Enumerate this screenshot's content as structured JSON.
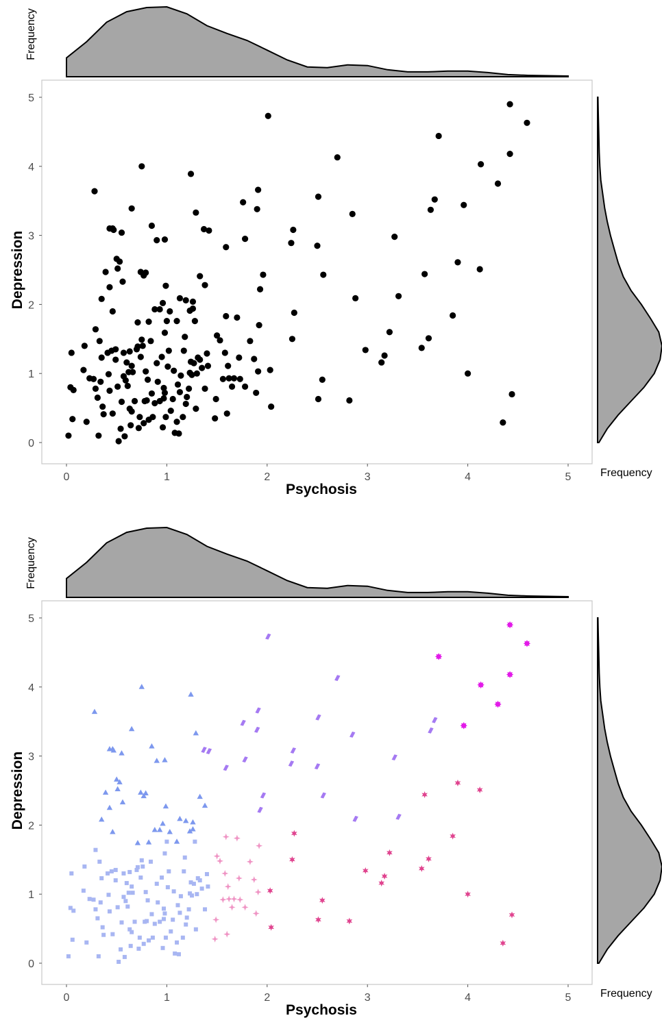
{
  "chart_data": [
    {
      "type": "scatter",
      "variant": "plain",
      "xlabel": "Psychosis",
      "ylabel": "Depression",
      "xlim": [
        0,
        5
      ],
      "ylim": [
        0,
        5
      ],
      "xticks": [
        "0",
        "1",
        "2",
        "3",
        "4",
        "5"
      ],
      "yticks": [
        "0",
        "1",
        "2",
        "3",
        "4",
        "5"
      ],
      "marginal_x_label": "Frequency",
      "marginal_y_label": "Frequency",
      "marker_color": "#000000",
      "density_fill": "#a6a6a6",
      "grid": false
    },
    {
      "type": "scatter",
      "variant": "clustered",
      "xlabel": "Psychosis",
      "ylabel": "Depression",
      "xlim": [
        0,
        5
      ],
      "ylim": [
        0,
        5
      ],
      "xticks": [
        "0",
        "1",
        "2",
        "3",
        "4",
        "5"
      ],
      "yticks": [
        "0",
        "1",
        "2",
        "3",
        "4",
        "5"
      ],
      "marginal_x_label": "Frequency",
      "marginal_y_label": "Frequency",
      "density_fill": "#a6a6a6",
      "grid": false,
      "groups": [
        {
          "marker": "square",
          "color": "#a8b6f2"
        },
        {
          "marker": "triangle",
          "color": "#7d98ee"
        },
        {
          "marker": "plus",
          "color": "#ef94c4"
        },
        {
          "marker": "diamond",
          "color": "#a57af2"
        },
        {
          "marker": "star",
          "color": "#e0448f"
        },
        {
          "marker": "burst",
          "color": "#e21ae8"
        }
      ]
    }
  ],
  "points": [
    [
      0.02,
      0.1,
      0
    ],
    [
      0.04,
      0.8,
      0
    ],
    [
      0.05,
      1.3,
      0
    ],
    [
      0.06,
      0.34,
      0
    ],
    [
      0.07,
      0.76,
      0
    ],
    [
      0.17,
      1.05,
      0
    ],
    [
      0.18,
      1.4,
      0
    ],
    [
      0.2,
      0.3,
      0
    ],
    [
      0.23,
      0.93,
      0
    ],
    [
      0.27,
      0.92,
      0
    ],
    [
      0.29,
      0.78,
      0
    ],
    [
      0.29,
      1.64,
      0
    ],
    [
      0.31,
      0.65,
      0
    ],
    [
      0.32,
      0.1,
      0
    ],
    [
      0.33,
      1.47,
      0
    ],
    [
      0.34,
      0.88,
      0
    ],
    [
      0.35,
      1.23,
      0
    ],
    [
      0.36,
      0.52,
      0
    ],
    [
      0.37,
      0.41,
      0
    ],
    [
      0.41,
      1.3,
      0
    ],
    [
      0.42,
      0.99,
      0
    ],
    [
      0.43,
      0.75,
      0
    ],
    [
      0.45,
      1.33,
      0
    ],
    [
      0.46,
      0.42,
      0
    ],
    [
      0.49,
      1.2,
      0
    ],
    [
      0.49,
      1.35,
      0
    ],
    [
      0.51,
      0.81,
      0
    ],
    [
      0.52,
      0.02,
      0
    ],
    [
      0.54,
      0.2,
      0
    ],
    [
      0.55,
      0.59,
      0
    ],
    [
      0.57,
      0.96,
      0
    ],
    [
      0.57,
      1.3,
      0
    ],
    [
      0.58,
      0.09,
      0
    ],
    [
      0.59,
      0.9,
      0
    ],
    [
      0.6,
      1.16,
      0
    ],
    [
      0.61,
      0.82,
      0
    ],
    [
      0.62,
      1.02,
      0
    ],
    [
      0.63,
      0.49,
      0
    ],
    [
      0.63,
      1.32,
      0
    ],
    [
      0.64,
      0.25,
      0
    ],
    [
      0.65,
      0.45,
      0
    ],
    [
      0.65,
      1.11,
      0
    ],
    [
      0.66,
      1.02,
      0
    ],
    [
      0.68,
      0.6,
      0
    ],
    [
      0.7,
      1.35,
      0
    ],
    [
      0.71,
      1.39,
      0
    ],
    [
      0.72,
      0.21,
      0
    ],
    [
      0.73,
      0.37,
      0
    ],
    [
      0.74,
      1.24,
      0
    ],
    [
      0.75,
      1.49,
      0
    ],
    [
      0.76,
      1.4,
      0
    ],
    [
      0.77,
      0.28,
      0
    ],
    [
      0.78,
      0.6,
      0
    ],
    [
      0.79,
      1.03,
      0
    ],
    [
      0.8,
      0.61,
      0
    ],
    [
      0.81,
      0.91,
      0
    ],
    [
      0.82,
      0.33,
      0
    ],
    [
      0.84,
      1.47,
      0
    ],
    [
      0.85,
      0.71,
      0
    ],
    [
      0.86,
      0.37,
      0
    ],
    [
      0.88,
      0.57,
      0
    ],
    [
      0.9,
      1.15,
      0
    ],
    [
      0.91,
      0.88,
      0
    ],
    [
      0.93,
      0.6,
      0
    ],
    [
      0.95,
      1.24,
      0
    ],
    [
      0.96,
      0.22,
      0
    ],
    [
      0.97,
      0.79,
      0
    ],
    [
      0.97,
      0.64,
      0
    ],
    [
      0.98,
      1.59,
      0
    ],
    [
      0.98,
      0.72,
      0
    ],
    [
      0.99,
      0.37,
      0
    ],
    [
      1.0,
      1.76,
      0
    ],
    [
      1.01,
      1.1,
      0
    ],
    [
      1.02,
      1.33,
      0
    ],
    [
      1.04,
      0.46,
      0
    ],
    [
      1.06,
      0.63,
      0
    ],
    [
      1.07,
      1.04,
      0
    ],
    [
      1.08,
      0.14,
      0
    ],
    [
      1.1,
      0.3,
      0
    ],
    [
      1.11,
      0.84,
      0
    ],
    [
      1.12,
      0.13,
      0
    ],
    [
      1.13,
      0.73,
      0
    ],
    [
      1.14,
      0.97,
      0
    ],
    [
      1.16,
      0.37,
      0
    ],
    [
      1.17,
      1.33,
      0
    ],
    [
      1.18,
      1.53,
      0
    ],
    [
      1.19,
      0.56,
      0
    ],
    [
      1.2,
      0.66,
      0
    ],
    [
      1.22,
      0.78,
      0
    ],
    [
      1.23,
      1.01,
      0
    ],
    [
      1.24,
      1.17,
      0
    ],
    [
      1.25,
      0.98,
      0
    ],
    [
      1.27,
      1.15,
      0
    ],
    [
      1.28,
      1.76,
      0
    ],
    [
      1.29,
      0.49,
      0
    ],
    [
      1.3,
      1.0,
      0
    ],
    [
      1.31,
      1.23,
      0
    ],
    [
      1.33,
      1.2,
      0
    ],
    [
      1.35,
      1.08,
      0
    ],
    [
      1.38,
      0.78,
      0
    ],
    [
      1.4,
      1.29,
      0
    ],
    [
      1.41,
      1.11,
      0
    ],
    [
      0.28,
      3.64,
      1
    ],
    [
      0.35,
      2.08,
      1
    ],
    [
      0.39,
      2.47,
      1
    ],
    [
      0.43,
      2.25,
      1
    ],
    [
      0.43,
      3.1,
      1
    ],
    [
      0.46,
      3.1,
      1
    ],
    [
      0.46,
      1.9,
      1
    ],
    [
      0.47,
      3.08,
      1
    ],
    [
      0.5,
      2.66,
      1
    ],
    [
      0.51,
      2.52,
      1
    ],
    [
      0.53,
      2.62,
      1
    ],
    [
      0.55,
      3.04,
      1
    ],
    [
      0.56,
      2.33,
      1
    ],
    [
      0.65,
      3.39,
      1
    ],
    [
      0.71,
      1.74,
      1
    ],
    [
      0.74,
      2.47,
      1
    ],
    [
      0.75,
      4.0,
      1
    ],
    [
      0.77,
      2.42,
      1
    ],
    [
      0.79,
      2.46,
      1
    ],
    [
      0.82,
      1.75,
      1
    ],
    [
      0.85,
      3.14,
      1
    ],
    [
      0.88,
      1.93,
      1
    ],
    [
      0.9,
      2.93,
      1
    ],
    [
      0.93,
      1.93,
      1
    ],
    [
      0.96,
      2.02,
      1
    ],
    [
      0.98,
      2.94,
      1
    ],
    [
      0.99,
      2.27,
      1
    ],
    [
      1.03,
      1.9,
      1
    ],
    [
      1.1,
      1.76,
      1
    ],
    [
      1.13,
      2.09,
      1
    ],
    [
      1.19,
      2.06,
      1
    ],
    [
      1.23,
      1.91,
      1
    ],
    [
      1.24,
      3.89,
      1
    ],
    [
      1.26,
      1.94,
      1
    ],
    [
      1.26,
      2.04,
      1
    ],
    [
      1.29,
      3.33,
      1
    ],
    [
      1.33,
      2.41,
      1
    ],
    [
      1.38,
      2.28,
      1
    ],
    [
      1.48,
      0.35,
      2
    ],
    [
      1.49,
      0.63,
      2
    ],
    [
      1.5,
      1.55,
      2
    ],
    [
      1.53,
      1.48,
      2
    ],
    [
      1.56,
      0.92,
      2
    ],
    [
      1.58,
      1.3,
      2
    ],
    [
      1.59,
      1.83,
      2
    ],
    [
      1.6,
      0.42,
      2
    ],
    [
      1.61,
      1.11,
      2
    ],
    [
      1.62,
      0.93,
      2
    ],
    [
      1.65,
      0.81,
      2
    ],
    [
      1.67,
      0.93,
      2
    ],
    [
      1.7,
      1.81,
      2
    ],
    [
      1.72,
      1.23,
      2
    ],
    [
      1.73,
      0.92,
      2
    ],
    [
      1.78,
      0.81,
      2
    ],
    [
      1.83,
      1.47,
      2
    ],
    [
      1.87,
      1.21,
      2
    ],
    [
      1.89,
      0.72,
      2
    ],
    [
      1.91,
      1.03,
      2
    ],
    [
      1.92,
      1.7,
      2
    ],
    [
      1.37,
      3.09,
      3
    ],
    [
      1.42,
      3.07,
      3
    ],
    [
      1.59,
      2.83,
      3
    ],
    [
      1.76,
      3.48,
      3
    ],
    [
      1.78,
      2.95,
      3
    ],
    [
      1.9,
      3.38,
      3
    ],
    [
      1.91,
      3.66,
      3
    ],
    [
      1.93,
      2.22,
      3
    ],
    [
      1.96,
      2.43,
      3
    ],
    [
      2.01,
      4.73,
      3
    ],
    [
      2.24,
      2.89,
      3
    ],
    [
      2.26,
      3.08,
      3
    ],
    [
      2.5,
      2.85,
      3
    ],
    [
      2.51,
      3.56,
      3
    ],
    [
      2.56,
      2.43,
      3
    ],
    [
      2.7,
      4.13,
      3
    ],
    [
      2.85,
      3.31,
      3
    ],
    [
      2.88,
      2.09,
      3
    ],
    [
      3.27,
      2.98,
      3
    ],
    [
      3.31,
      2.12,
      3
    ],
    [
      3.63,
      3.37,
      3
    ],
    [
      3.67,
      3.52,
      3
    ],
    [
      2.03,
      1.05,
      4
    ],
    [
      2.04,
      0.52,
      4
    ],
    [
      2.25,
      1.5,
      4
    ],
    [
      2.27,
      1.88,
      4
    ],
    [
      2.51,
      0.63,
      4
    ],
    [
      2.55,
      0.91,
      4
    ],
    [
      2.82,
      0.61,
      4
    ],
    [
      2.98,
      1.34,
      4
    ],
    [
      3.14,
      1.16,
      4
    ],
    [
      3.17,
      1.26,
      4
    ],
    [
      3.22,
      1.6,
      4
    ],
    [
      3.54,
      1.37,
      4
    ],
    [
      3.57,
      2.44,
      4
    ],
    [
      3.61,
      1.51,
      4
    ],
    [
      3.85,
      1.84,
      4
    ],
    [
      3.9,
      2.61,
      4
    ],
    [
      4.0,
      1.0,
      4
    ],
    [
      4.12,
      2.51,
      4
    ],
    [
      4.35,
      0.29,
      4
    ],
    [
      4.44,
      0.7,
      4
    ],
    [
      3.71,
      4.44,
      5
    ],
    [
      3.96,
      3.44,
      5
    ],
    [
      4.13,
      4.03,
      5
    ],
    [
      4.3,
      3.75,
      5
    ],
    [
      4.42,
      4.18,
      5
    ],
    [
      4.42,
      4.9,
      5
    ],
    [
      4.59,
      4.63,
      5
    ]
  ],
  "marginal_x_density": [
    [
      0.0,
      0.27
    ],
    [
      0.2,
      0.5
    ],
    [
      0.4,
      0.78
    ],
    [
      0.6,
      0.93
    ],
    [
      0.8,
      0.99
    ],
    [
      1.0,
      1.0
    ],
    [
      1.2,
      0.9
    ],
    [
      1.4,
      0.73
    ],
    [
      1.6,
      0.62
    ],
    [
      1.8,
      0.52
    ],
    [
      2.0,
      0.38
    ],
    [
      2.2,
      0.24
    ],
    [
      2.4,
      0.14
    ],
    [
      2.6,
      0.13
    ],
    [
      2.8,
      0.17
    ],
    [
      3.0,
      0.16
    ],
    [
      3.2,
      0.1
    ],
    [
      3.4,
      0.07
    ],
    [
      3.6,
      0.07
    ],
    [
      3.8,
      0.08
    ],
    [
      4.0,
      0.08
    ],
    [
      4.2,
      0.06
    ],
    [
      4.4,
      0.03
    ],
    [
      4.6,
      0.02
    ],
    [
      5.0,
      0.01
    ]
  ],
  "marginal_y_density": [
    [
      0.0,
      0.02
    ],
    [
      0.2,
      0.15
    ],
    [
      0.4,
      0.32
    ],
    [
      0.6,
      0.52
    ],
    [
      0.8,
      0.72
    ],
    [
      1.0,
      0.88
    ],
    [
      1.2,
      0.97
    ],
    [
      1.4,
      1.0
    ],
    [
      1.6,
      0.95
    ],
    [
      1.8,
      0.82
    ],
    [
      2.0,
      0.68
    ],
    [
      2.2,
      0.52
    ],
    [
      2.4,
      0.4
    ],
    [
      2.6,
      0.32
    ],
    [
      2.8,
      0.26
    ],
    [
      3.0,
      0.2
    ],
    [
      3.2,
      0.15
    ],
    [
      3.4,
      0.11
    ],
    [
      3.6,
      0.08
    ],
    [
      3.8,
      0.05
    ],
    [
      4.0,
      0.035
    ],
    [
      4.2,
      0.025
    ],
    [
      4.4,
      0.02
    ],
    [
      4.6,
      0.015
    ],
    [
      4.8,
      0.01
    ],
    [
      5.0,
      0.005
    ]
  ]
}
